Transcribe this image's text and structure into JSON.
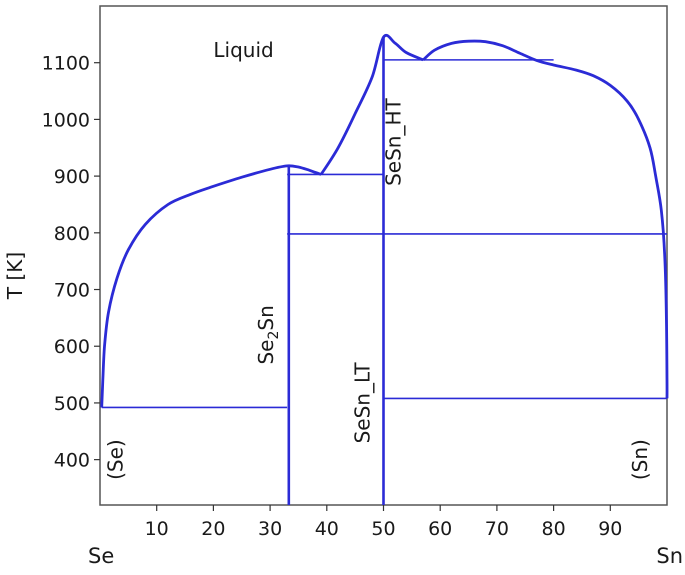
{
  "chart_data": {
    "type": "line",
    "ylabel": "T [K]",
    "xlabel": "",
    "xlim": [
      0,
      100
    ],
    "ylim": [
      320,
      1200
    ],
    "xticks": [
      10,
      20,
      30,
      40,
      50,
      60,
      70,
      80,
      90
    ],
    "yticks": [
      400,
      500,
      600,
      700,
      800,
      900,
      1000,
      1100
    ],
    "x_end_labels": {
      "left": "Se",
      "right": "Sn"
    },
    "grid": false,
    "colors": {
      "lines": "#2b2bd6",
      "frame": "#555555",
      "text": "#1a1a1a"
    },
    "series": [
      {
        "values": [
          [
            0.3,
            492
          ],
          [
            0.5,
            540
          ],
          [
            0.8,
            600
          ],
          [
            1.5,
            660
          ],
          [
            3,
            720
          ],
          [
            5,
            770
          ],
          [
            8,
            815
          ],
          [
            12,
            850
          ],
          [
            16,
            868
          ],
          [
            20,
            882
          ],
          [
            25,
            898
          ],
          [
            30,
            912
          ],
          [
            33,
            918
          ],
          [
            35,
            916
          ],
          [
            37,
            910
          ],
          [
            39,
            903
          ]
        ]
      },
      {
        "values": [
          [
            39,
            903
          ],
          [
            42,
            950
          ],
          [
            45,
            1010
          ],
          [
            48,
            1075
          ],
          [
            50,
            1145
          ],
          [
            52,
            1135
          ],
          [
            54,
            1118
          ],
          [
            57,
            1105
          ]
        ]
      },
      {
        "values": [
          [
            57,
            1105
          ],
          [
            59,
            1122
          ],
          [
            62,
            1134
          ],
          [
            65,
            1138
          ],
          [
            68,
            1137
          ],
          [
            71,
            1130
          ],
          [
            74,
            1117
          ],
          [
            77,
            1104
          ],
          [
            80,
            1096
          ],
          [
            84,
            1087
          ],
          [
            87,
            1077
          ],
          [
            90,
            1060
          ],
          [
            93,
            1032
          ],
          [
            95,
            1000
          ],
          [
            97,
            950
          ],
          [
            98,
            900
          ],
          [
            99,
            840
          ],
          [
            99.6,
            760
          ],
          [
            99.9,
            650
          ],
          [
            100,
            540
          ],
          [
            100,
            508
          ]
        ]
      }
    ],
    "isotherms": [
      {
        "x_from": 0.3,
        "x_to": 33,
        "y": 492
      },
      {
        "x_from": 33,
        "x_to": 50,
        "y": 903
      },
      {
        "x_from": 33,
        "x_to": 100,
        "y": 798
      },
      {
        "x_from": 50,
        "x_to": 80,
        "y": 1105
      },
      {
        "x_from": 50,
        "x_to": 100,
        "y": 508
      }
    ],
    "compound_lines": [
      {
        "x": 33.3,
        "y_top": 918
      },
      {
        "x": 50,
        "y_top": 1145
      }
    ],
    "annotations": [
      {
        "text": "Liquid",
        "x": 20,
        "y": 1110,
        "rotate": false
      },
      {
        "sub_prefix": "Se",
        "sub": "2",
        "sub_suffix": "Sn",
        "x": 30.5,
        "y": 620,
        "rotate": true
      },
      {
        "text": "SeSn_LT",
        "x": 47.5,
        "y": 500,
        "rotate": true
      },
      {
        "text": "SeSn_HT",
        "x": 53,
        "y": 960,
        "rotate": true
      },
      {
        "text": "(Se)",
        "x": 4,
        "y": 400,
        "rotate": true
      },
      {
        "text": "(Sn)",
        "x": 96.5,
        "y": 400,
        "rotate": true
      }
    ]
  }
}
